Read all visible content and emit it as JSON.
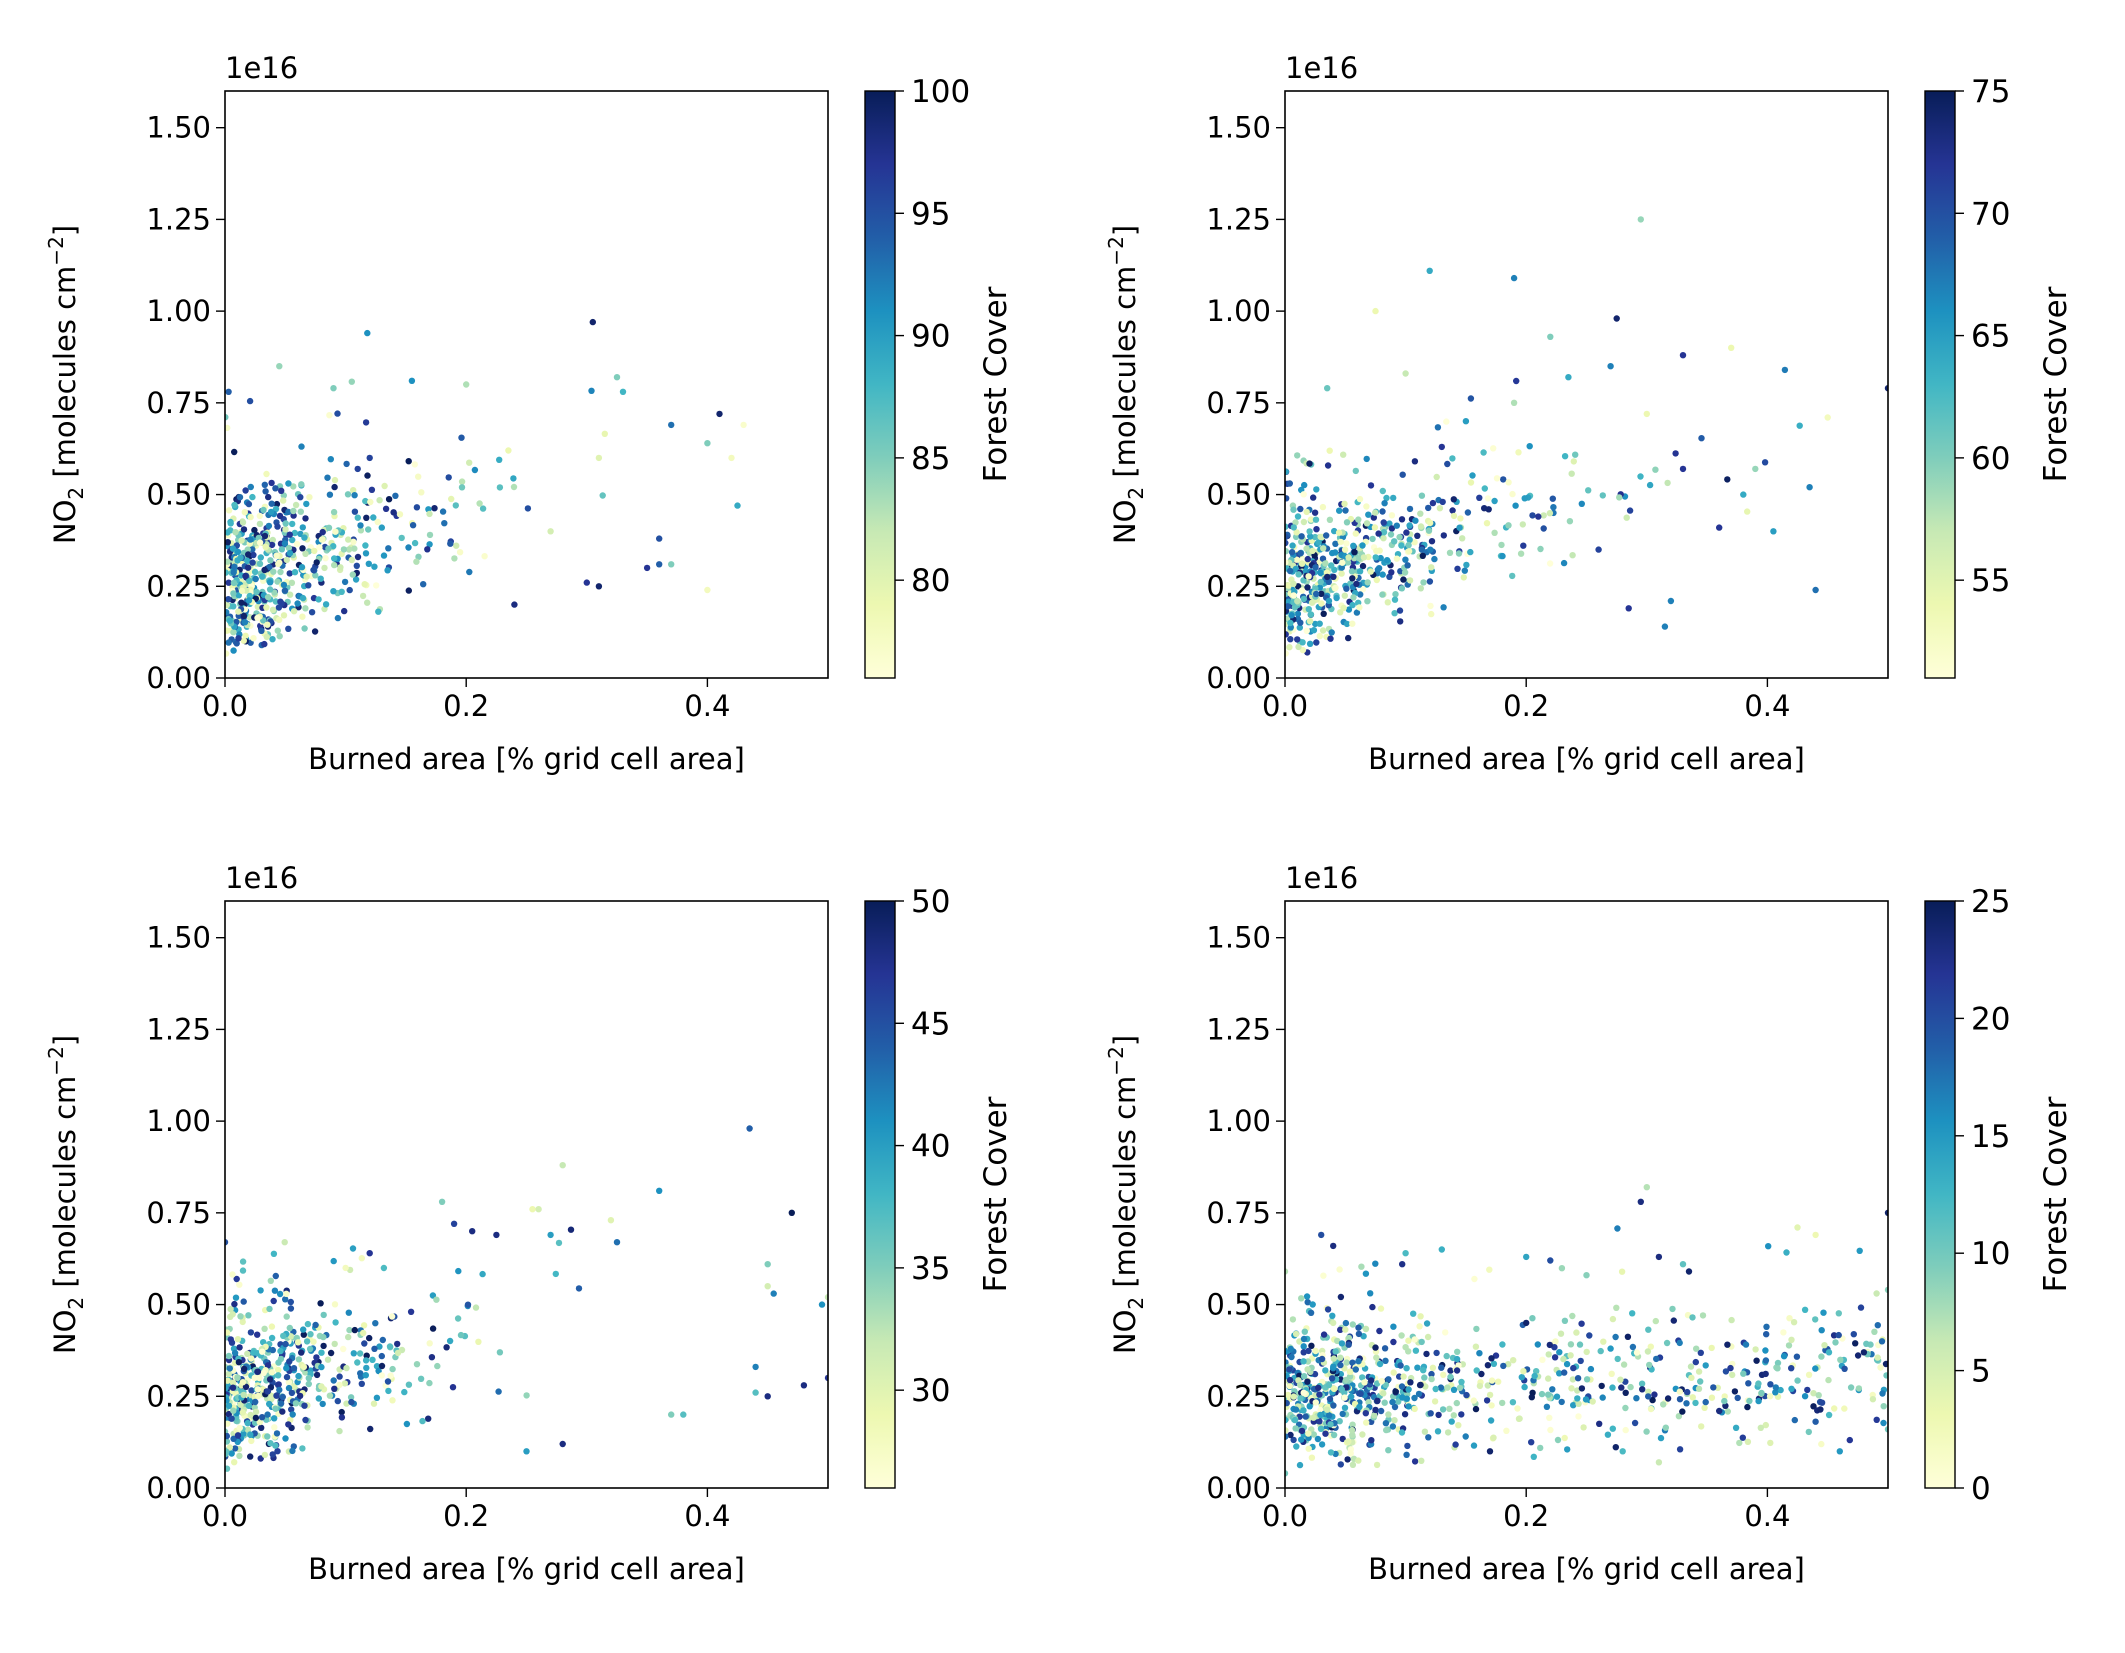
{
  "chart_data": [
    {
      "type": "scatter",
      "xlabel": "Burned area [% grid cell area]",
      "ylabel_main": "NO",
      "ylabel_sub": "2",
      "ylabel_rest": " [molecules cm",
      "ylabel_sup": "−2",
      "ylabel_end": "]",
      "offset_text": "1e16",
      "xlim": [
        0.0,
        0.5
      ],
      "ylim": [
        0.0,
        1.6
      ],
      "xticks": [
        "0.0",
        "0.2",
        "0.4"
      ],
      "yticks": [
        "0.00",
        "0.25",
        "0.50",
        "0.75",
        "1.00",
        "1.25",
        "1.50"
      ],
      "colorbar": {
        "label": "Forest Cover",
        "range": [
          76,
          100
        ],
        "ticks": [
          "80",
          "85",
          "90",
          "95",
          "100"
        ],
        "colormap": "YlGnBu"
      },
      "point_count": 600,
      "points": [
        [
          0.003,
          0.78,
          94
        ],
        [
          0.118,
          0.94,
          91
        ],
        [
          0.045,
          0.85,
          84
        ],
        [
          0.305,
          0.97,
          99
        ],
        [
          0.41,
          0.72,
          99
        ],
        [
          0.155,
          0.81,
          91
        ],
        [
          0.2,
          0.8,
          83
        ],
        [
          0.235,
          0.62,
          79
        ],
        [
          0.325,
          0.82,
          85
        ],
        [
          0.33,
          0.78,
          88
        ],
        [
          0.37,
          0.69,
          93
        ],
        [
          0.4,
          0.64,
          85
        ],
        [
          0.43,
          0.69,
          77
        ],
        [
          0.42,
          0.6,
          78
        ],
        [
          0.3,
          0.26,
          97
        ],
        [
          0.35,
          0.3,
          97
        ],
        [
          0.36,
          0.38,
          95
        ],
        [
          0.31,
          0.25,
          99
        ],
        [
          0.4,
          0.24,
          78
        ],
        [
          0.36,
          0.31,
          94
        ],
        [
          0.37,
          0.31,
          85
        ],
        [
          0.425,
          0.47,
          89
        ],
        [
          0.31,
          0.6,
          80
        ],
        [
          0.27,
          0.4,
          81
        ],
        [
          0.24,
          0.2,
          98
        ],
        [
          0.17,
          0.39,
          84
        ],
        [
          0.13,
          0.41,
          90
        ],
        [
          0.11,
          0.57,
          96
        ],
        [
          0.12,
          0.6,
          96
        ],
        [
          0.09,
          0.79,
          85
        ]
      ]
    },
    {
      "type": "scatter",
      "xlabel": "Burned area [% grid cell area]",
      "ylabel_main": "NO",
      "ylabel_sub": "2",
      "ylabel_rest": " [molecules cm",
      "ylabel_sup": "−2",
      "ylabel_end": "]",
      "offset_text": "1e16",
      "xlim": [
        0.0,
        0.5
      ],
      "ylim": [
        0.0,
        1.6
      ],
      "xticks": [
        "0.0",
        "0.2",
        "0.4"
      ],
      "yticks": [
        "0.00",
        "0.25",
        "0.50",
        "0.75",
        "1.00",
        "1.25",
        "1.50"
      ],
      "colorbar": {
        "label": "Forest Cover",
        "range": [
          51,
          75
        ],
        "ticks": [
          "55",
          "60",
          "65",
          "70",
          "75"
        ],
        "colormap": "YlGnBu"
      },
      "point_count": 600,
      "points": [
        [
          0.295,
          1.25,
          59
        ],
        [
          0.12,
          1.11,
          64
        ],
        [
          0.19,
          1.09,
          67
        ],
        [
          0.075,
          1.0,
          54
        ],
        [
          0.275,
          0.98,
          74
        ],
        [
          0.33,
          0.88,
          72
        ],
        [
          0.37,
          0.9,
          54
        ],
        [
          0.5,
          0.79,
          74
        ],
        [
          0.45,
          0.71,
          53
        ],
        [
          0.3,
          0.72,
          54
        ],
        [
          0.22,
          0.93,
          60
        ],
        [
          0.035,
          0.79,
          61
        ],
        [
          0.39,
          0.57,
          59
        ],
        [
          0.435,
          0.52,
          67
        ],
        [
          0.38,
          0.5,
          64
        ],
        [
          0.33,
          0.57,
          72
        ],
        [
          0.36,
          0.41,
          72
        ],
        [
          0.405,
          0.4,
          65
        ],
        [
          0.44,
          0.24,
          68
        ],
        [
          0.32,
          0.21,
          67
        ],
        [
          0.315,
          0.14,
          67
        ],
        [
          0.285,
          0.19,
          72
        ],
        [
          0.27,
          0.85,
          67
        ],
        [
          0.235,
          0.82,
          64
        ],
        [
          0.26,
          0.35,
          71
        ],
        [
          0.21,
          0.44,
          72
        ],
        [
          0.15,
          0.7,
          65
        ],
        [
          0.19,
          0.75,
          58
        ],
        [
          0.1,
          0.83,
          57
        ],
        [
          0.13,
          0.63,
          72
        ]
      ]
    },
    {
      "type": "scatter",
      "xlabel": "Burned area [% grid cell area]",
      "ylabel_main": "NO",
      "ylabel_sub": "2",
      "ylabel_rest": " [molecules cm",
      "ylabel_sup": "−2",
      "ylabel_end": "]",
      "offset_text": "1e16",
      "xlim": [
        0.0,
        0.5
      ],
      "ylim": [
        0.0,
        1.6
      ],
      "xticks": [
        "0.0",
        "0.2",
        "0.4"
      ],
      "yticks": [
        "0.00",
        "0.25",
        "0.50",
        "0.75",
        "1.00",
        "1.25",
        "1.50"
      ],
      "colorbar": {
        "label": "Forest Cover",
        "range": [
          26,
          50
        ],
        "ticks": [
          "30",
          "35",
          "40",
          "45",
          "50"
        ],
        "colormap": "YlGnBu"
      },
      "point_count": 550,
      "points": [
        [
          0.435,
          0.98,
          44
        ],
        [
          0.28,
          0.88,
          32
        ],
        [
          0.36,
          0.81,
          41
        ],
        [
          0.47,
          0.75,
          50
        ],
        [
          0.18,
          0.78,
          35
        ],
        [
          0.19,
          0.72,
          46
        ],
        [
          0.205,
          0.7,
          48
        ],
        [
          0.225,
          0.69,
          48
        ],
        [
          0.27,
          0.69,
          40
        ],
        [
          0.32,
          0.73,
          30
        ],
        [
          0.26,
          0.76,
          31
        ],
        [
          0.255,
          0.76,
          29
        ],
        [
          0.325,
          0.67,
          43
        ],
        [
          0.45,
          0.61,
          35
        ],
        [
          0.45,
          0.55,
          31
        ],
        [
          0.455,
          0.53,
          42
        ],
        [
          0.495,
          0.5,
          41
        ],
        [
          0.5,
          0.52,
          32
        ],
        [
          0.44,
          0.26,
          37
        ],
        [
          0.44,
          0.33,
          42
        ],
        [
          0.45,
          0.25,
          48
        ],
        [
          0.38,
          0.2,
          37
        ],
        [
          0.37,
          0.2,
          35
        ],
        [
          0.5,
          0.3,
          47
        ],
        [
          0.48,
          0.28,
          48
        ],
        [
          0.25,
          0.1,
          40
        ],
        [
          0.28,
          0.12,
          48
        ],
        [
          0.12,
          0.64,
          47
        ],
        [
          0.1,
          0.6,
          28
        ],
        [
          0.0,
          0.67,
          45
        ]
      ]
    },
    {
      "type": "scatter",
      "xlabel": "Burned area [% grid cell area]",
      "ylabel_main": "NO",
      "ylabel_sub": "2",
      "ylabel_rest": " [molecules cm",
      "ylabel_sup": "−2",
      "ylabel_end": "]",
      "offset_text": "1e16",
      "xlim": [
        0.0,
        0.5
      ],
      "ylim": [
        0.0,
        1.6
      ],
      "xticks": [
        "0.0",
        "0.2",
        "0.4"
      ],
      "yticks": [
        "0.00",
        "0.25",
        "0.50",
        "0.75",
        "1.00",
        "1.25",
        "1.50"
      ],
      "colorbar": {
        "label": "Forest Cover",
        "range": [
          0,
          25
        ],
        "ticks": [
          "0",
          "5",
          "10",
          "15",
          "20",
          "25"
        ],
        "colormap": "YlGnBu"
      },
      "point_count": 900,
      "points": [
        [
          0.3,
          0.82,
          7
        ],
        [
          0.295,
          0.78,
          23
        ],
        [
          0.5,
          0.75,
          24
        ],
        [
          0.03,
          0.69,
          20
        ],
        [
          0.04,
          0.66,
          23
        ],
        [
          0.13,
          0.65,
          13
        ],
        [
          0.1,
          0.64,
          12
        ],
        [
          0.22,
          0.62,
          20
        ],
        [
          0.31,
          0.63,
          23
        ],
        [
          0.335,
          0.59,
          24
        ],
        [
          0.33,
          0.61,
          11
        ],
        [
          0.425,
          0.71,
          4
        ],
        [
          0.44,
          0.69,
          3
        ],
        [
          0.5,
          0.54,
          9
        ],
        [
          0.48,
          0.37,
          24
        ],
        [
          0.495,
          0.4,
          18
        ],
        [
          0.5,
          0.16,
          10
        ],
        [
          0.46,
          0.1,
          15
        ],
        [
          0.445,
          0.43,
          16
        ],
        [
          0.36,
          0.21,
          23
        ],
        [
          0.28,
          0.1,
          12
        ],
        [
          0.31,
          0.07,
          6
        ],
        [
          0.27,
          0.38,
          15
        ],
        [
          0.25,
          0.58,
          9
        ],
        [
          0.2,
          0.63,
          14
        ],
        [
          0.17,
          0.1,
          24
        ],
        [
          0.2,
          0.45,
          24
        ],
        [
          0.0,
          0.59,
          7
        ],
        [
          0.04,
          0.45,
          5
        ],
        [
          0.0,
          0.04,
          10
        ]
      ]
    }
  ]
}
